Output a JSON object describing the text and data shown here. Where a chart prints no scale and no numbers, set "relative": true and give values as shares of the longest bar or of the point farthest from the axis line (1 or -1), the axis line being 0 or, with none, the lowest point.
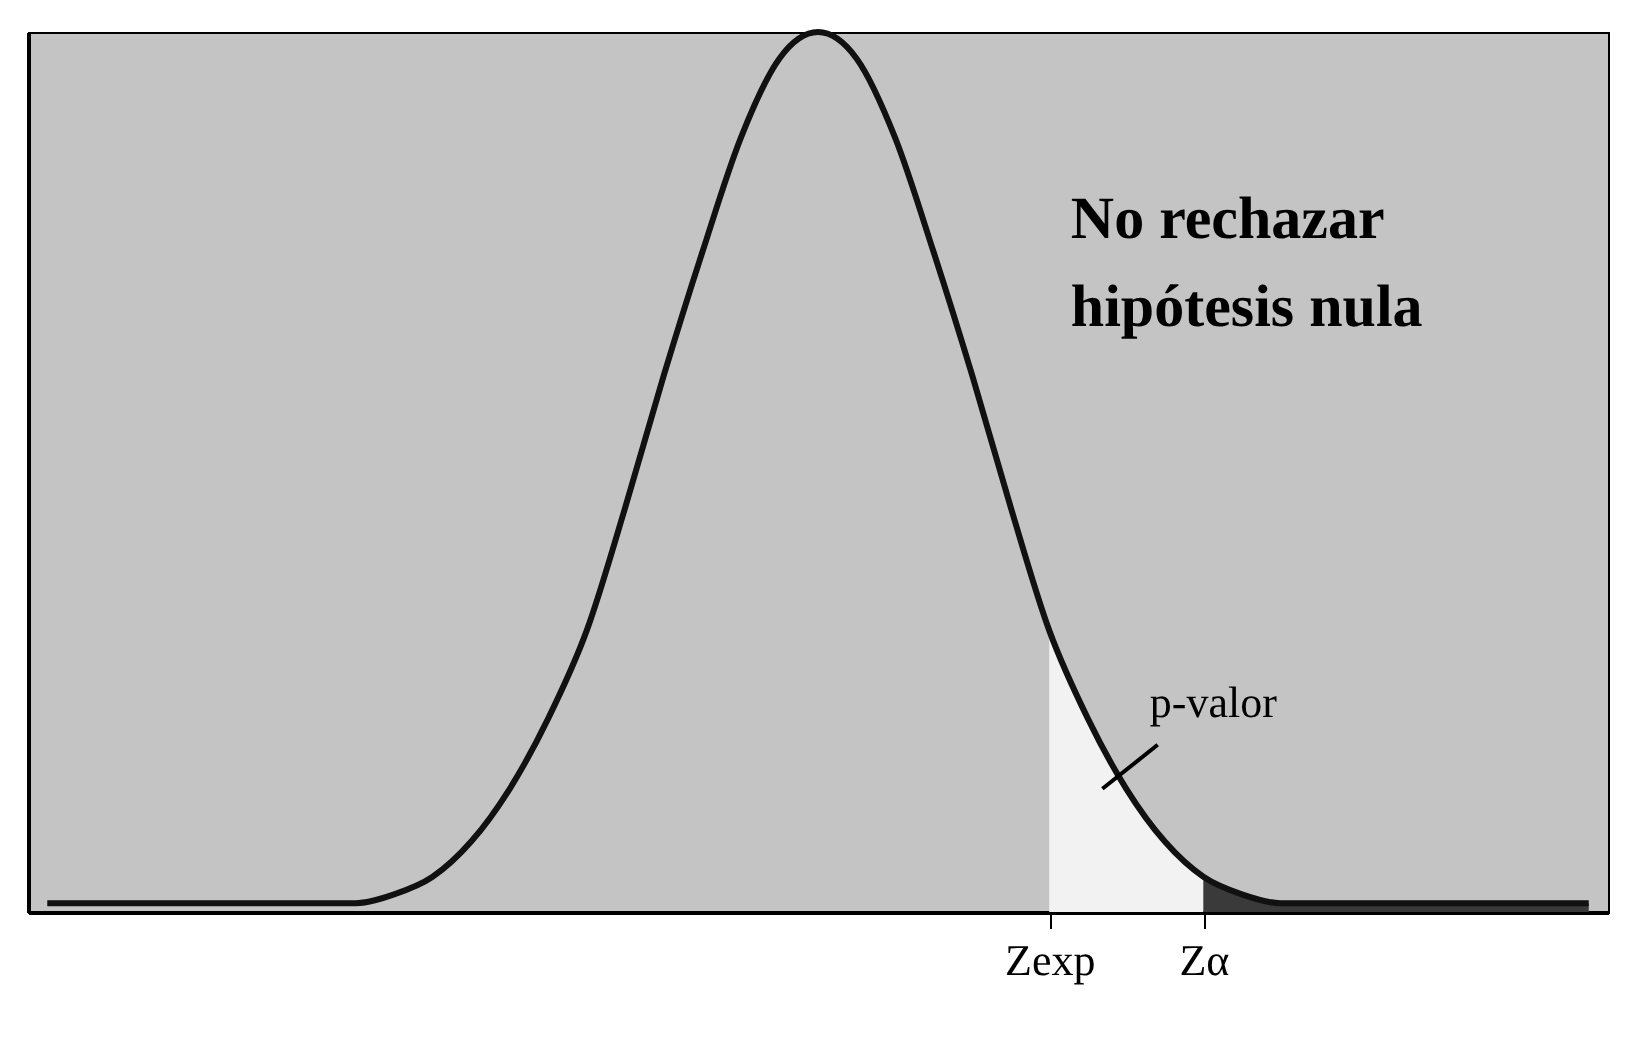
{
  "chart_data": {
    "type": "line",
    "relative": true,
    "grid": false,
    "categories": [
      null,
      null,
      null,
      null,
      null,
      null,
      null,
      null,
      null,
      null,
      null,
      null,
      null,
      null,
      null,
      null,
      null,
      null,
      null,
      null,
      null,
      null,
      null,
      null,
      null,
      null,
      "Zexp",
      null,
      null,
      null,
      "Zα",
      null,
      null,
      null,
      null,
      null,
      null,
      null,
      null,
      null,
      null
    ],
    "annotations": [
      "No rechazar hipótesis nula",
      "p-valor"
    ],
    "series": [
      {
        "color": "#111111",
        "values": [
          0.01,
          0.01,
          0.01,
          0.01,
          0.01,
          0.01,
          0.01,
          0.01,
          0.01,
          0.02,
          0.04,
          0.08,
          0.14,
          0.22,
          0.32,
          0.46,
          0.61,
          0.75,
          0.88,
          0.97,
          1.0,
          0.97,
          0.88,
          0.75,
          0.61,
          0.46,
          0.32,
          0.22,
          0.14,
          0.08,
          0.04,
          0.02,
          0.01,
          0.01,
          0.01,
          0.01,
          0.01,
          0.01,
          0.01,
          0.01,
          0.01
        ]
      },
      {
        "type": "area",
        "color": "#f2f2f2",
        "values": [
          null,
          null,
          null,
          null,
          null,
          null,
          null,
          null,
          null,
          null,
          null,
          null,
          null,
          null,
          null,
          null,
          null,
          null,
          null,
          null,
          null,
          null,
          null,
          null,
          null,
          null,
          0.32,
          0.22,
          0.14,
          0.08,
          0.04,
          null,
          null,
          null,
          null,
          null,
          null,
          null,
          null,
          null,
          null
        ]
      },
      {
        "type": "area",
        "color": "#3a3a3a",
        "values": [
          null,
          null,
          null,
          null,
          null,
          null,
          null,
          null,
          null,
          null,
          null,
          null,
          null,
          null,
          null,
          null,
          null,
          null,
          null,
          null,
          null,
          null,
          null,
          null,
          null,
          null,
          null,
          null,
          null,
          null,
          0.04,
          0.02,
          0.01,
          0.01,
          0.01,
          0.01,
          0.01,
          0.01,
          0.01,
          0.01,
          0.01
        ]
      }
    ]
  }
}
